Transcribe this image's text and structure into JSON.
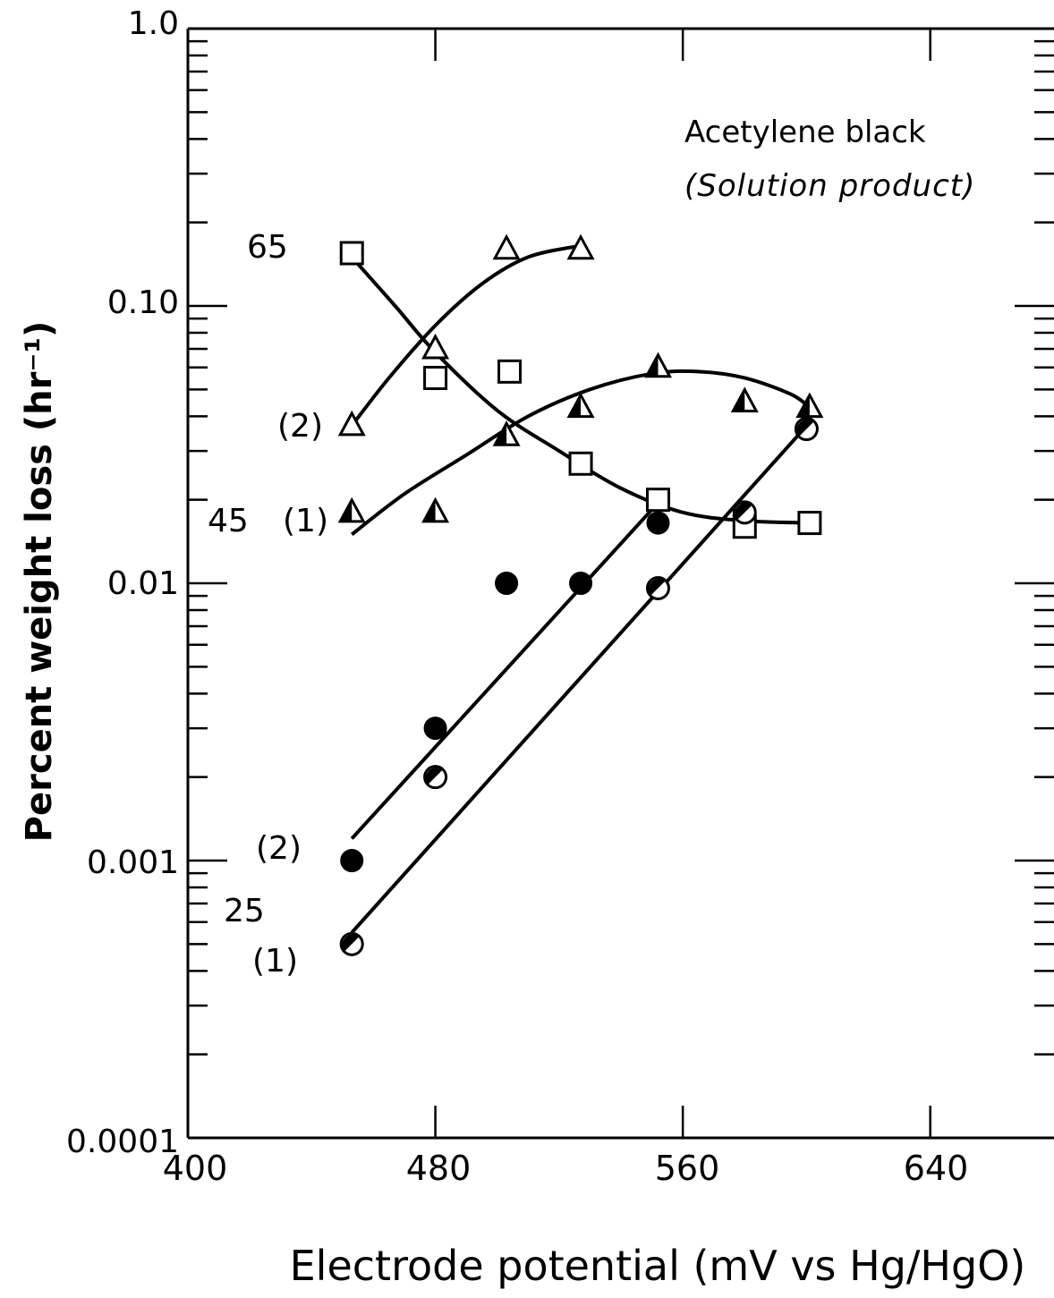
{
  "chart_data": {
    "type": "scatter",
    "title": "Acetylene black",
    "subtitle": "(Solution product)",
    "xlabel": "Electrode potential (mV vs Hg/HgO)",
    "ylabel": "Percent weight loss (hr⁻¹)",
    "xlim": [
      400,
      680
    ],
    "ylim": [
      0.0001,
      1.0
    ],
    "y_scale": "log",
    "x_ticks": [
      "400",
      "480",
      "560",
      "640"
    ],
    "y_ticks": [
      "0.0001",
      "0.001",
      "0.01",
      "0.10",
      "1.0"
    ],
    "temperature_labels": [
      "65",
      "45",
      "25"
    ],
    "curve_labels": [
      "(1)",
      "(2)"
    ],
    "series": [
      {
        "name": "65 (2)",
        "marker": "triangle-open",
        "points": [
          [
            453,
            0.037
          ],
          [
            480,
            0.07
          ],
          [
            503,
            0.16
          ],
          [
            527,
            0.16
          ]
        ],
        "curve": [
          [
            453,
            0.037
          ],
          [
            465,
            0.055
          ],
          [
            480,
            0.085
          ],
          [
            495,
            0.12
          ],
          [
            510,
            0.15
          ],
          [
            527,
            0.165
          ]
        ]
      },
      {
        "name": "65 (1)",
        "marker": "square-open",
        "points": [
          [
            453,
            0.155
          ],
          [
            480,
            0.055
          ],
          [
            504,
            0.058
          ],
          [
            527,
            0.027
          ],
          [
            552,
            0.02
          ],
          [
            580,
            0.016
          ],
          [
            601,
            0.0165
          ]
        ],
        "curve": [
          [
            453,
            0.15
          ],
          [
            467,
            0.1
          ],
          [
            480,
            0.068
          ],
          [
            500,
            0.042
          ],
          [
            520,
            0.03
          ],
          [
            540,
            0.022
          ],
          [
            560,
            0.018
          ],
          [
            580,
            0.0168
          ],
          [
            601,
            0.0165
          ]
        ]
      },
      {
        "name": "45 (1)",
        "marker": "triangle-half",
        "points": [
          [
            453,
            0.018
          ],
          [
            480,
            0.018
          ],
          [
            503,
            0.034
          ],
          [
            527,
            0.043
          ],
          [
            552,
            0.06
          ],
          [
            580,
            0.045
          ],
          [
            601,
            0.043
          ]
        ],
        "curve": [
          [
            453,
            0.015
          ],
          [
            470,
            0.021
          ],
          [
            490,
            0.029
          ],
          [
            510,
            0.04
          ],
          [
            530,
            0.05
          ],
          [
            550,
            0.057
          ],
          [
            565,
            0.058
          ],
          [
            580,
            0.055
          ],
          [
            595,
            0.048
          ],
          [
            601,
            0.043
          ]
        ]
      },
      {
        "name": "45 (2)",
        "marker": "circle-filled",
        "points": [
          [
            453,
            0.001
          ],
          [
            480,
            0.003
          ],
          [
            503,
            0.01
          ],
          [
            527,
            0.01
          ],
          [
            552,
            0.0165
          ]
        ],
        "curve": [
          [
            453,
            0.0012
          ],
          [
            552,
            0.0195
          ]
        ]
      },
      {
        "name": "25 (1)",
        "marker": "circle-half",
        "points": [
          [
            453,
            0.0005
          ],
          [
            480,
            0.002
          ],
          [
            552,
            0.0096
          ],
          [
            580,
            0.018
          ],
          [
            600,
            0.036
          ]
        ],
        "curve": [
          [
            453,
            0.00055
          ],
          [
            601,
            0.038
          ]
        ]
      }
    ]
  }
}
